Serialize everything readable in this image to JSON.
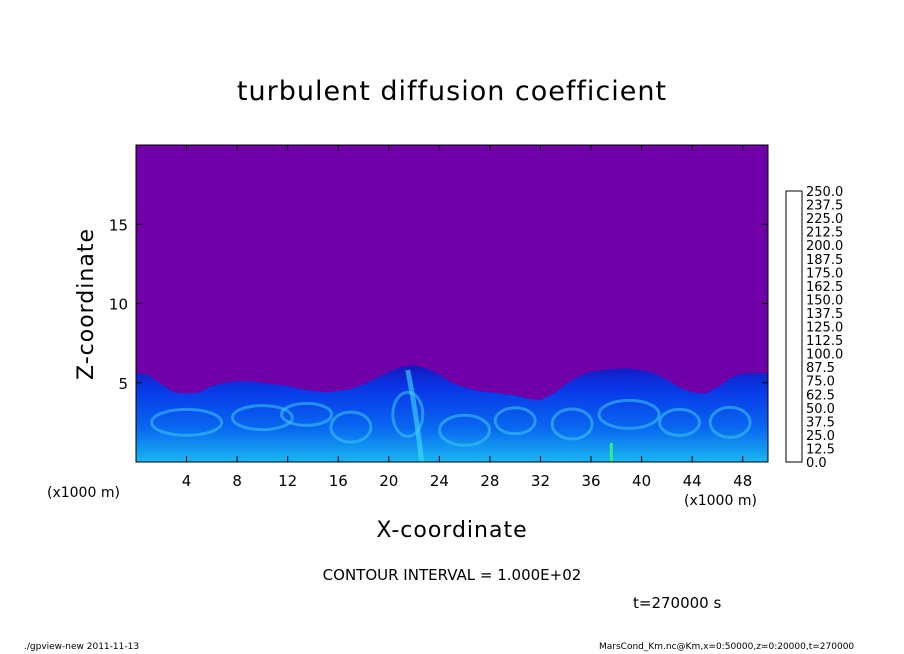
{
  "chart_data": {
    "type": "heatmap",
    "title": "turbulent diffusion coefficient",
    "xlabel": "X-coordinate",
    "ylabel": "Z-coordinate",
    "x_unit_label": "(x1000 m)",
    "y_unit_label": "(x1000 m)",
    "x_ticks": [
      4,
      8,
      12,
      16,
      20,
      24,
      28,
      32,
      36,
      40,
      44,
      48
    ],
    "y_ticks": [
      5,
      10,
      15
    ],
    "xlim": [
      0,
      50
    ],
    "ylim": [
      0,
      20
    ],
    "colorbar": {
      "levels": [
        "0.0",
        "12.5",
        "25.0",
        "37.5",
        "50.0",
        "62.5",
        "75.0",
        "87.5",
        "100.0",
        "112.5",
        "125.0",
        "137.5",
        "150.0",
        "162.5",
        "175.0",
        "187.5",
        "200.0",
        "212.5",
        "225.0",
        "237.5",
        "250.0"
      ],
      "colors": [
        "#7000a8",
        "#1010c8",
        "#0838e8",
        "#0868f0",
        "#1898f0",
        "#18c0f0",
        "#20e8e8",
        "#20e8b0",
        "#18e070",
        "#10d830",
        "#30d800",
        "#70e000",
        "#a8e800",
        "#d0e800",
        "#f0e000",
        "#f8c000",
        "#f89800",
        "#f06800",
        "#f03818",
        "#f05060"
      ]
    },
    "boundary_layer_top": [
      [
        0,
        5.6
      ],
      [
        1,
        5.5
      ],
      [
        2,
        4.9
      ],
      [
        3,
        4.4
      ],
      [
        4,
        4.3
      ],
      [
        5,
        4.4
      ],
      [
        6,
        4.8
      ],
      [
        7,
        5.0
      ],
      [
        8,
        5.1
      ],
      [
        9,
        5.1
      ],
      [
        10,
        5.0
      ],
      [
        11,
        4.9
      ],
      [
        12,
        4.8
      ],
      [
        13,
        4.6
      ],
      [
        14,
        4.5
      ],
      [
        15,
        4.4
      ],
      [
        16,
        4.5
      ],
      [
        17,
        4.6
      ],
      [
        18,
        4.9
      ],
      [
        19,
        5.3
      ],
      [
        20,
        5.7
      ],
      [
        21,
        6.0
      ],
      [
        22,
        6.1
      ],
      [
        23,
        5.9
      ],
      [
        24,
        5.5
      ],
      [
        25,
        5.0
      ],
      [
        26,
        4.7
      ],
      [
        27,
        4.5
      ],
      [
        28,
        4.4
      ],
      [
        29,
        4.3
      ],
      [
        30,
        4.2
      ],
      [
        31,
        4.0
      ],
      [
        32,
        3.9
      ],
      [
        33,
        4.3
      ],
      [
        34,
        4.9
      ],
      [
        35,
        5.4
      ],
      [
        36,
        5.7
      ],
      [
        37,
        5.8
      ],
      [
        38,
        5.9
      ],
      [
        39,
        5.9
      ],
      [
        40,
        5.8
      ],
      [
        41,
        5.6
      ],
      [
        42,
        5.2
      ],
      [
        43,
        4.7
      ],
      [
        44,
        4.4
      ],
      [
        45,
        4.3
      ],
      [
        46,
        4.7
      ],
      [
        47,
        5.3
      ],
      [
        48,
        5.6
      ],
      [
        49,
        5.6
      ],
      [
        50,
        5.6
      ]
    ],
    "contour_interval": "CONTOUR INTERVAL = 1.000E+02"
  },
  "time_label": "t=270000 s",
  "footer_left": "./gpview-new  2011-11-13",
  "footer_right": "MarsCond_Km.nc@Km,x=0:50000,z=0:20000,t=270000"
}
